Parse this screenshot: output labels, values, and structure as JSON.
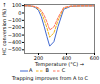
{
  "chart_data": {
    "type": "line",
    "subtitle": "Trapping improves from A to C",
    "xlabel": "Temperature (°C)",
    "ylabel": "HC conversion (%)",
    "x": [
      100,
      140,
      160,
      180,
      200,
      220,
      240,
      260,
      280,
      310,
      340,
      380,
      430,
      500,
      600
    ],
    "series": [
      {
        "name": "A",
        "line_style": "solid",
        "values": [
          98,
          95,
          88,
          70,
          35,
          -50,
          -180,
          -320,
          -450,
          -390,
          -180,
          50,
          90,
          95,
          96
        ]
      },
      {
        "name": "B",
        "line_style": "dashed",
        "values": [
          98,
          96,
          90,
          78,
          55,
          10,
          -90,
          -200,
          -330,
          -270,
          -100,
          65,
          92,
          96,
          97
        ]
      },
      {
        "name": "C",
        "line_style": "dashed",
        "values": [
          98,
          97,
          93,
          85,
          68,
          35,
          -30,
          -120,
          -230,
          -190,
          -60,
          75,
          93,
          97,
          97
        ]
      }
    ],
    "xlim": [
      100,
      600
    ],
    "ylim": [
      -550,
      115
    ],
    "xticks": [
      200,
      400,
      600
    ],
    "yticks": [
      100,
      0,
      -100,
      -200,
      -300,
      -400,
      -500
    ],
    "legend": "bottom"
  }
}
